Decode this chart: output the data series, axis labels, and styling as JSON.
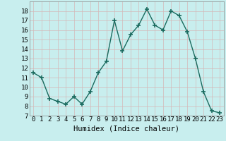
{
  "x": [
    0,
    1,
    2,
    3,
    4,
    5,
    6,
    7,
    8,
    9,
    10,
    11,
    12,
    13,
    14,
    15,
    16,
    17,
    18,
    19,
    20,
    21,
    22,
    23
  ],
  "y": [
    11.5,
    11.0,
    8.8,
    8.5,
    8.2,
    9.0,
    8.2,
    9.5,
    11.5,
    12.7,
    17.0,
    13.8,
    15.5,
    16.5,
    18.2,
    16.5,
    16.0,
    18.0,
    17.5,
    15.8,
    13.0,
    9.5,
    7.5,
    7.3
  ],
  "line_color": "#1a6b5f",
  "marker": "+",
  "marker_size": 5,
  "marker_lw": 1.2,
  "bg_color": "#c8eeee",
  "grid_color_major": "#d4b8b8",
  "grid_color_minor": "#dcc8c8",
  "xlabel": "Humidex (Indice chaleur)",
  "xlim": [
    -0.5,
    23.5
  ],
  "ylim": [
    7,
    19
  ],
  "yticks": [
    7,
    8,
    9,
    10,
    11,
    12,
    13,
    14,
    15,
    16,
    17,
    18
  ],
  "xticks": [
    0,
    1,
    2,
    3,
    4,
    5,
    6,
    7,
    8,
    9,
    10,
    11,
    12,
    13,
    14,
    15,
    16,
    17,
    18,
    19,
    20,
    21,
    22,
    23
  ],
  "tick_fontsize": 6.5,
  "xlabel_fontsize": 7.5,
  "line_width": 1.0
}
